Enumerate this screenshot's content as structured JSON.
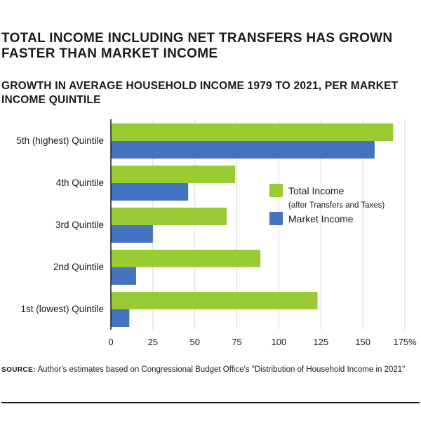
{
  "header": {
    "title": "TOTAL INCOME INCLUDING NET TRANSFERS HAS GROWN FASTER THAN MARKET INCOME",
    "subtitle": "GROWTH IN AVERAGE HOUSEHOLD INCOME 1979 TO 2021, PER MARKET INCOME QUINTILE"
  },
  "chart_data": {
    "type": "bar",
    "orientation": "horizontal",
    "categories": [
      "5th (highest) Quintile",
      "4th Quintile",
      "3rd Quintile",
      "2nd Quintile",
      "1st (lowest) Quintile"
    ],
    "series": [
      {
        "name": "Total Income",
        "name_note": "(after Transfers and Taxes)",
        "color": "#99cc33",
        "values": [
          168,
          74,
          69,
          89,
          123
        ]
      },
      {
        "name": "Market Income",
        "color": "#4473c0",
        "values": [
          157,
          46,
          25,
          15,
          11
        ]
      }
    ],
    "xlim": [
      0,
      175
    ],
    "x_ticks": [
      "0",
      "25",
      "50",
      "75",
      "100",
      "125",
      "150",
      "175%"
    ],
    "x_tick_values": [
      0,
      25,
      50,
      75,
      100,
      125,
      150,
      175
    ],
    "grid": true,
    "legend_position": "right"
  },
  "source": {
    "label": "SOURCE:",
    "text": "Author's estimates based on Congressional Budget Office's \"Distribution of Household Income in 2021\""
  },
  "colors": {
    "grid": "#d9d9d9",
    "axis": "#1a1a1a"
  }
}
